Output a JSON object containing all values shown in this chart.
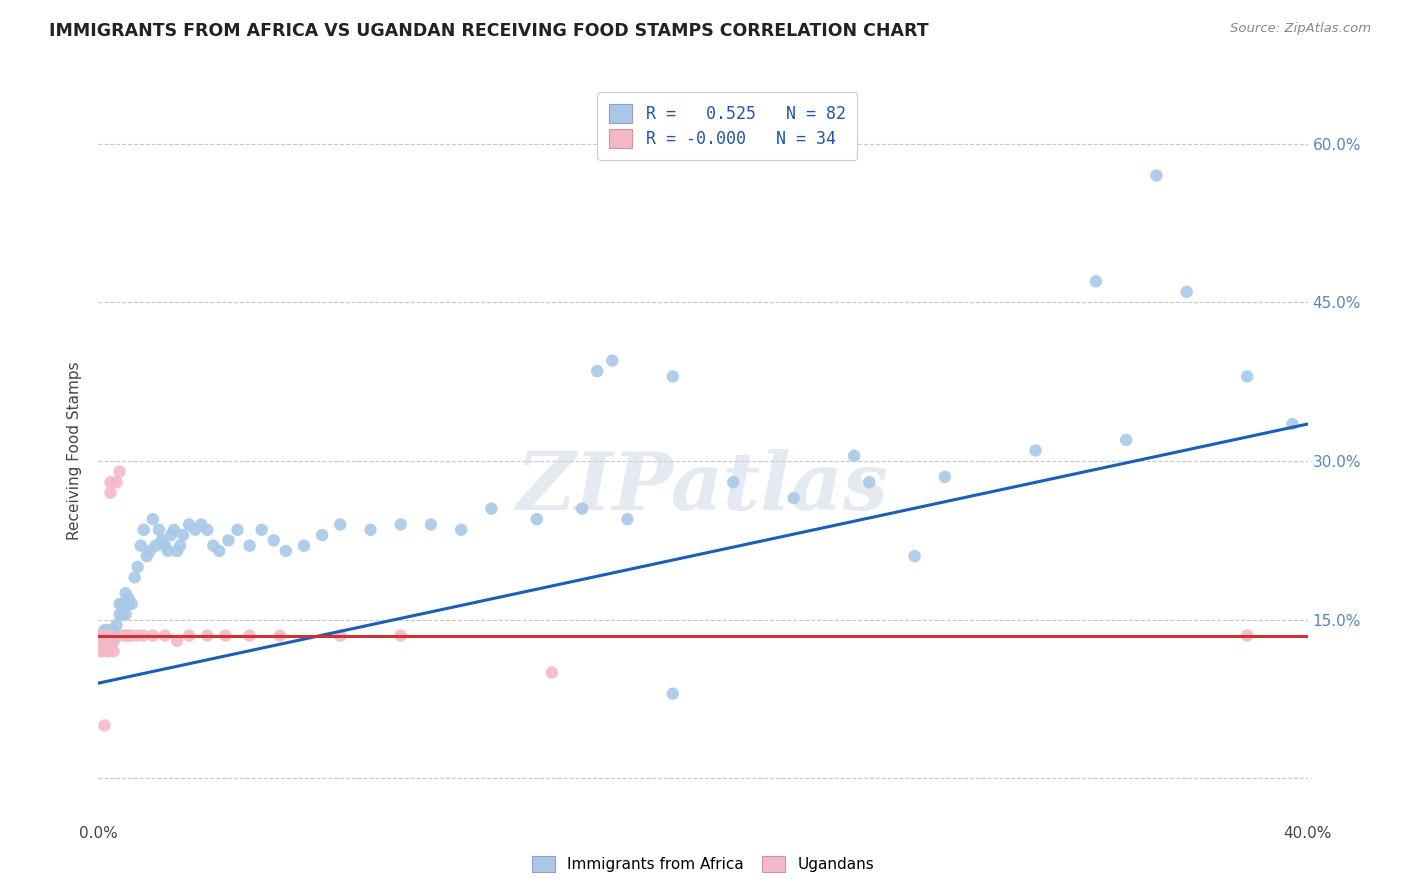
{
  "title": "IMMIGRANTS FROM AFRICA VS UGANDAN RECEIVING FOOD STAMPS CORRELATION CHART",
  "source": "Source: ZipAtlas.com",
  "ylabel": "Receiving Food Stamps",
  "xlim": [
    0.0,
    0.4
  ],
  "ylim": [
    -0.04,
    0.66
  ],
  "xticks": [
    0.0,
    0.05,
    0.1,
    0.15,
    0.2,
    0.25,
    0.3,
    0.35,
    0.4
  ],
  "yticks": [
    0.0,
    0.15,
    0.3,
    0.45,
    0.6
  ],
  "blue_R": "0.525",
  "blue_N": "82",
  "pink_R": "-0.000",
  "pink_N": "34",
  "blue_color": "#a8c8e8",
  "pink_color": "#f4b8c8",
  "blue_line_color": "#1a5fb4",
  "pink_line_color": "#cc3333",
  "grid_color": "#c8c8c8",
  "watermark": "ZIPatlas",
  "legend_labels": [
    "Immigrants from Africa",
    "Ugandans"
  ],
  "blue_line_x0": 0.0,
  "blue_line_y0": 0.09,
  "blue_line_x1": 0.4,
  "blue_line_y1": 0.335,
  "pink_line_y": 0.135,
  "blue_scatter_x": [
    0.001,
    0.001,
    0.001,
    0.002,
    0.002,
    0.002,
    0.003,
    0.003,
    0.003,
    0.004,
    0.004,
    0.005,
    0.005,
    0.005,
    0.006,
    0.006,
    0.007,
    0.007,
    0.008,
    0.008,
    0.009,
    0.009,
    0.01,
    0.01,
    0.011,
    0.012,
    0.013,
    0.014,
    0.015,
    0.016,
    0.017,
    0.018,
    0.019,
    0.02,
    0.021,
    0.022,
    0.023,
    0.024,
    0.025,
    0.026,
    0.027,
    0.028,
    0.03,
    0.032,
    0.034,
    0.036,
    0.038,
    0.04,
    0.043,
    0.046,
    0.05,
    0.054,
    0.058,
    0.062,
    0.068,
    0.074,
    0.08,
    0.09,
    0.1,
    0.11,
    0.12,
    0.13,
    0.145,
    0.16,
    0.175,
    0.19,
    0.21,
    0.23,
    0.255,
    0.28,
    0.31,
    0.34,
    0.165,
    0.17,
    0.19,
    0.25,
    0.27,
    0.33,
    0.35,
    0.36,
    0.38,
    0.395
  ],
  "blue_scatter_y": [
    0.135,
    0.13,
    0.125,
    0.14,
    0.135,
    0.13,
    0.13,
    0.14,
    0.135,
    0.14,
    0.13,
    0.135,
    0.14,
    0.13,
    0.145,
    0.135,
    0.155,
    0.165,
    0.155,
    0.165,
    0.155,
    0.175,
    0.165,
    0.17,
    0.165,
    0.19,
    0.2,
    0.22,
    0.235,
    0.21,
    0.215,
    0.245,
    0.22,
    0.235,
    0.225,
    0.22,
    0.215,
    0.23,
    0.235,
    0.215,
    0.22,
    0.23,
    0.24,
    0.235,
    0.24,
    0.235,
    0.22,
    0.215,
    0.225,
    0.235,
    0.22,
    0.235,
    0.225,
    0.215,
    0.22,
    0.23,
    0.24,
    0.235,
    0.24,
    0.24,
    0.235,
    0.255,
    0.245,
    0.255,
    0.245,
    0.08,
    0.28,
    0.265,
    0.28,
    0.285,
    0.31,
    0.32,
    0.385,
    0.395,
    0.38,
    0.305,
    0.21,
    0.47,
    0.57,
    0.46,
    0.38,
    0.335
  ],
  "pink_scatter_x": [
    0.001,
    0.001,
    0.001,
    0.002,
    0.002,
    0.002,
    0.003,
    0.003,
    0.003,
    0.004,
    0.004,
    0.004,
    0.005,
    0.005,
    0.006,
    0.007,
    0.008,
    0.009,
    0.01,
    0.011,
    0.013,
    0.015,
    0.018,
    0.022,
    0.026,
    0.03,
    0.036,
    0.042,
    0.05,
    0.06,
    0.08,
    0.1,
    0.15,
    0.38
  ],
  "pink_scatter_y": [
    0.135,
    0.13,
    0.12,
    0.135,
    0.13,
    0.05,
    0.135,
    0.125,
    0.12,
    0.135,
    0.28,
    0.27,
    0.13,
    0.12,
    0.28,
    0.29,
    0.135,
    0.135,
    0.135,
    0.135,
    0.135,
    0.135,
    0.135,
    0.135,
    0.13,
    0.135,
    0.135,
    0.135,
    0.135,
    0.135,
    0.135,
    0.135,
    0.1,
    0.135
  ]
}
